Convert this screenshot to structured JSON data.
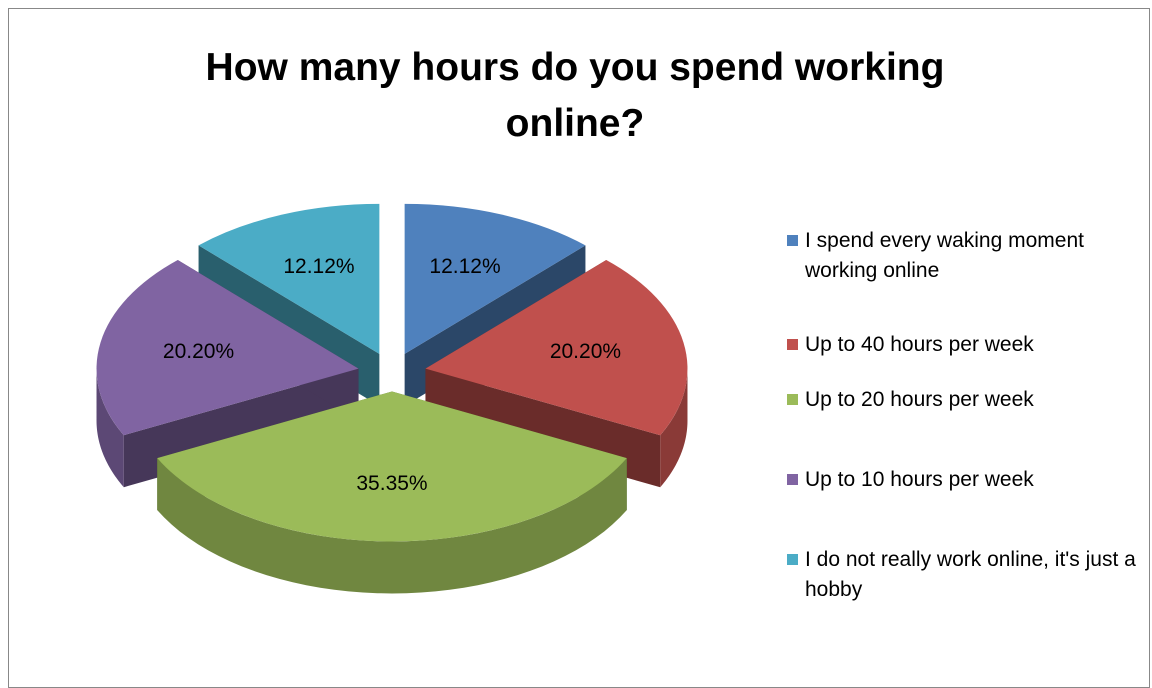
{
  "chart_data": {
    "type": "pie",
    "title": "How many hours do you spend working online?",
    "categories": [
      "I spend every waking moment working online",
      "Up to 40 hours per week",
      "Up to 20 hours per week",
      "Up to 10 hours per week",
      "I do not really work online, it's just a hobby"
    ],
    "values": [
      12.12,
      20.2,
      35.35,
      20.2,
      12.12
    ],
    "value_labels": [
      "12.12%",
      "20.20%",
      "35.35%",
      "20.20%",
      "12.12%"
    ],
    "colors": [
      "#4f81bd",
      "#c0504d",
      "#9bbb59",
      "#8064a2",
      "#4bacc6"
    ],
    "legend": "right",
    "exploded": true,
    "3d": true
  }
}
